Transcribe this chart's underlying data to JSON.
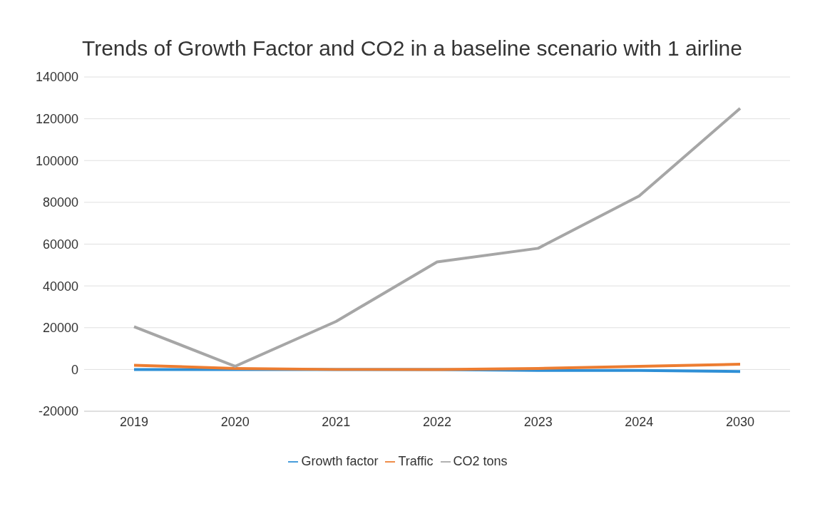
{
  "chart_data": {
    "type": "line",
    "title": "Trends of Growth Factor and CO2 in a baseline scenario with 1 airline",
    "categories": [
      "2019",
      "2020",
      "2021",
      "2022",
      "2023",
      "2024",
      "2030"
    ],
    "series": [
      {
        "name": "Growth factor",
        "color": "#2e8fd6",
        "values": [
          0,
          0,
          0,
          0,
          -500,
          -500,
          -1000
        ]
      },
      {
        "name": "Traffic",
        "color": "#ed7d31",
        "values": [
          2000,
          500,
          0,
          0,
          500,
          1500,
          2500
        ]
      },
      {
        "name": "CO2 tons",
        "color": "#a6a6a6",
        "values": [
          20500,
          1500,
          23000,
          51500,
          58000,
          83000,
          125000
        ]
      }
    ],
    "ylim": [
      -20000,
      140000
    ],
    "yticks": [
      -20000,
      0,
      20000,
      40000,
      60000,
      80000,
      100000,
      120000,
      140000
    ],
    "grid": "y",
    "legend": "bottom",
    "marker": "none",
    "line_style": "solid"
  }
}
